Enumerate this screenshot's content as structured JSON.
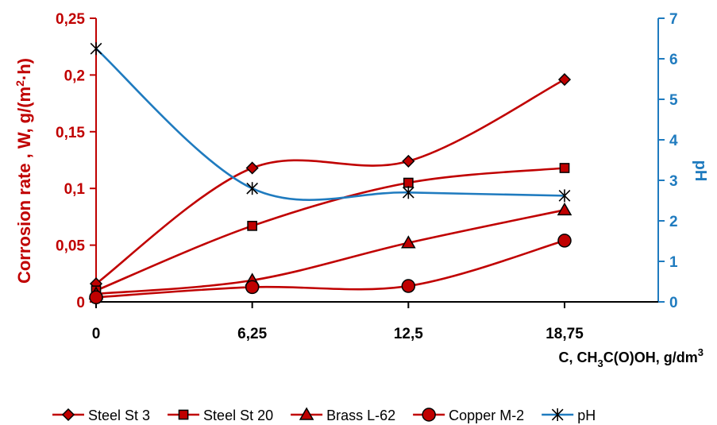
{
  "chart_data": {
    "type": "line",
    "x": [
      0,
      6.25,
      12.5,
      18.75
    ],
    "x_tick_labels": [
      "0",
      "6,25",
      "12,5",
      "18,75"
    ],
    "xlim": [
      0,
      22.5
    ],
    "xlabel": {
      "prefix": "C, CH",
      "sub1": "3",
      "middle": "C(O)OH, g/dm",
      "sup": "3"
    },
    "ylabel_left": {
      "prefix": "Corrosion rate , W, g/(m",
      "sup": "2",
      "suffix": "·h)"
    },
    "ylim_left": [
      0,
      0.25
    ],
    "y_ticks_left": [
      0,
      0.05,
      0.1,
      0.15,
      0.2,
      0.25
    ],
    "y_tick_labels_left": [
      "0",
      "0,05",
      "0,1",
      "0,15",
      "0,2",
      "0,25"
    ],
    "ylabel_right": "pH",
    "ylim_right": [
      0,
      7
    ],
    "y_ticks_right": [
      0,
      1,
      2,
      3,
      4,
      5,
      6,
      7
    ],
    "y_tick_labels_right": [
      "0",
      "1",
      "2",
      "3",
      "4",
      "5",
      "6",
      "7"
    ],
    "grid": false,
    "legend_position": "bottom",
    "series": [
      {
        "name": "Steel  St 3",
        "axis": "left",
        "marker": "diamond",
        "color": "#c00000",
        "values": [
          0.016,
          0.118,
          0.124,
          0.196
        ]
      },
      {
        "name": "Steel  St 20",
        "axis": "left",
        "marker": "square",
        "color": "#c00000",
        "values": [
          0.01,
          0.067,
          0.105,
          0.118
        ]
      },
      {
        "name": "Brass L-62",
        "axis": "left",
        "marker": "triangle",
        "color": "#c00000",
        "values": [
          0.007,
          0.019,
          0.052,
          0.081
        ]
      },
      {
        "name": "Copper M-2",
        "axis": "left",
        "marker": "circle",
        "color": "#c00000",
        "values": [
          0.004,
          0.013,
          0.014,
          0.054
        ]
      },
      {
        "name": "pH",
        "axis": "right",
        "marker": "star",
        "color": "#1f7bbf",
        "values": [
          6.25,
          2.8,
          2.7,
          2.62
        ]
      }
    ]
  }
}
